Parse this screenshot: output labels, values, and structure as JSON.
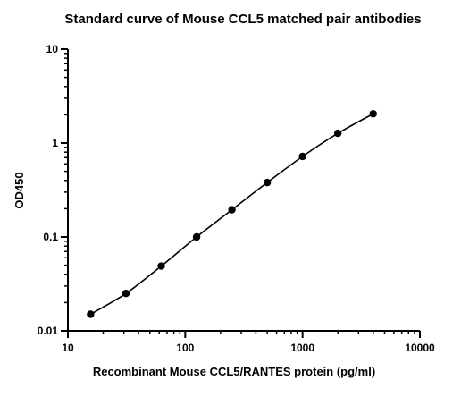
{
  "chart_data": {
    "type": "scatter",
    "title": "Standard curve of Mouse CCL5 matched pair antibodies",
    "xlabel": "Recombinant Mouse CCL5/RANTES protein (pg/ml)",
    "ylabel": "OD450",
    "x_scale": "log",
    "y_scale": "log",
    "xlim": [
      10,
      10000
    ],
    "ylim": [
      0.01,
      10
    ],
    "x_ticks": [
      10,
      100,
      1000,
      10000
    ],
    "x_tick_labels": [
      "10",
      "100",
      "1000",
      "10000"
    ],
    "y_ticks": [
      0.01,
      0.1,
      1,
      10
    ],
    "y_tick_labels": [
      "0.01",
      "0.1",
      "1",
      "10"
    ],
    "grid": false,
    "fit_curve": true,
    "series": [
      {
        "x": [
          15.6,
          31.25,
          62.5,
          125,
          250,
          500,
          1000,
          2000,
          4000
        ],
        "y": [
          0.015,
          0.025,
          0.049,
          0.1,
          0.195,
          0.38,
          0.72,
          1.27,
          2.05
        ]
      }
    ],
    "colors": {
      "marker": "#000000",
      "line": "#000000"
    }
  }
}
